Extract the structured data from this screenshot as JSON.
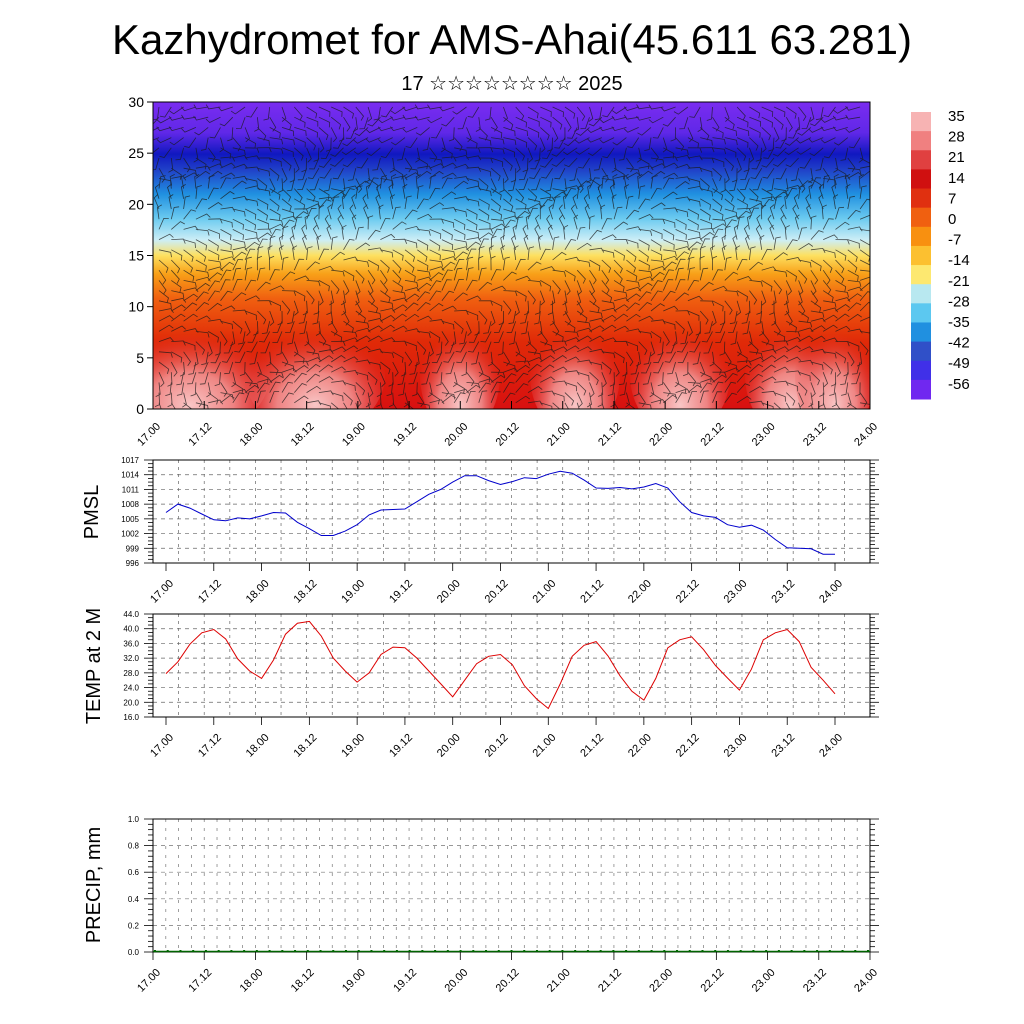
{
  "page": {
    "title": "Kazhydromet for AMS-Ahai(45.611 63.281)",
    "subtitle": "17 ☆☆☆☆☆☆☆☆ 2025"
  },
  "time_ticks": [
    "17.00",
    "17.12",
    "18.00",
    "18.12",
    "19.00",
    "19.12",
    "20.00",
    "20.12",
    "21.00",
    "21.12",
    "22.00",
    "22.12",
    "23.00",
    "23.12",
    "24.00"
  ],
  "chart_data": [
    {
      "type": "heatmap",
      "ylim": [
        0,
        30
      ],
      "yticks": [
        "0",
        "5",
        "10",
        "15",
        "20",
        "25",
        "30"
      ],
      "colorbar": {
        "labels": [
          "35",
          "28",
          "21",
          "14",
          "7",
          "0",
          "-7",
          "-14",
          "-21",
          "-28",
          "-35",
          "-42",
          "-49",
          "-56"
        ],
        "colors": [
          "#f7b3b3",
          "#f08080",
          "#e04040",
          "#d01010",
          "#e03010",
          "#f06010",
          "#f89010",
          "#fcc030",
          "#fde870",
          "#b8e8f0",
          "#5cc8f0",
          "#2090e0",
          "#3050c8",
          "#4030e8",
          "#7028f0"
        ]
      },
      "overlay": "wind barbs"
    },
    {
      "type": "line",
      "ylabel": "PMSL",
      "ylim": [
        996,
        1017
      ],
      "yticks": [
        "996",
        "999",
        "1002",
        "1005",
        "1008",
        "1011",
        "1014",
        "1017"
      ],
      "color": "#0000cc",
      "values": [
        1006.3,
        1008.0,
        1007.2,
        1006.0,
        1004.8,
        1004.6,
        1005.2,
        1005.0,
        1005.6,
        1006.3,
        1006.2,
        1004.3,
        1003.0,
        1001.6,
        1001.6,
        1002.5,
        1003.8,
        1005.8,
        1006.8,
        1006.9,
        1007.0,
        1008.5,
        1010.0,
        1011.0,
        1012.5,
        1013.8,
        1013.8,
        1012.8,
        1012.0,
        1012.6,
        1013.4,
        1013.2,
        1014.1,
        1014.7,
        1014.3,
        1012.9,
        1011.3,
        1011.2,
        1011.4,
        1011.1,
        1011.5,
        1012.2,
        1011.3,
        1008.5,
        1006.3,
        1005.6,
        1005.3,
        1003.8,
        1003.3,
        1003.7,
        1002.7,
        1000.8,
        999.1,
        999.0,
        998.9,
        997.8,
        997.8
      ]
    },
    {
      "type": "line",
      "ylabel": "TEMP at 2 M",
      "ylim": [
        16,
        44
      ],
      "yticks": [
        "16.0",
        "20.0",
        "24.0",
        "28.0",
        "32.0",
        "36.0",
        "40.0",
        "44.0"
      ],
      "color": "#dd0000",
      "values": [
        27.8,
        31.0,
        35.8,
        38.9,
        39.8,
        37.2,
        31.8,
        28.5,
        26.5,
        31.5,
        38.5,
        41.5,
        42.0,
        38.0,
        32.0,
        28.5,
        25.5,
        28.0,
        33.0,
        35.0,
        34.8,
        32.0,
        28.5,
        25.0,
        21.5,
        26.0,
        30.5,
        32.5,
        33.0,
        30.2,
        24.5,
        21.0,
        18.3,
        25.0,
        32.5,
        35.5,
        36.5,
        32.6,
        27.2,
        23.0,
        20.6,
        26.5,
        34.8,
        37.0,
        37.8,
        34.3,
        30.0,
        26.6,
        23.3,
        29.0,
        37.0,
        38.9,
        39.8,
        36.5,
        29.5,
        26.0,
        22.3
      ]
    },
    {
      "type": "bar",
      "ylabel": "PRECIP, mm",
      "ylim": [
        0,
        1
      ],
      "yticks": [
        "0.0",
        "0.2",
        "0.4",
        "0.6",
        "0.8",
        "1.0"
      ],
      "color": "#006400",
      "values": [
        0,
        0,
        0,
        0,
        0,
        0,
        0,
        0,
        0,
        0,
        0,
        0,
        0,
        0,
        0,
        0,
        0,
        0,
        0,
        0,
        0,
        0,
        0,
        0,
        0,
        0,
        0,
        0,
        0,
        0,
        0,
        0,
        0,
        0,
        0,
        0,
        0,
        0,
        0,
        0,
        0,
        0,
        0,
        0,
        0,
        0,
        0,
        0,
        0,
        0,
        0,
        0,
        0,
        0,
        0,
        0,
        0
      ]
    }
  ]
}
